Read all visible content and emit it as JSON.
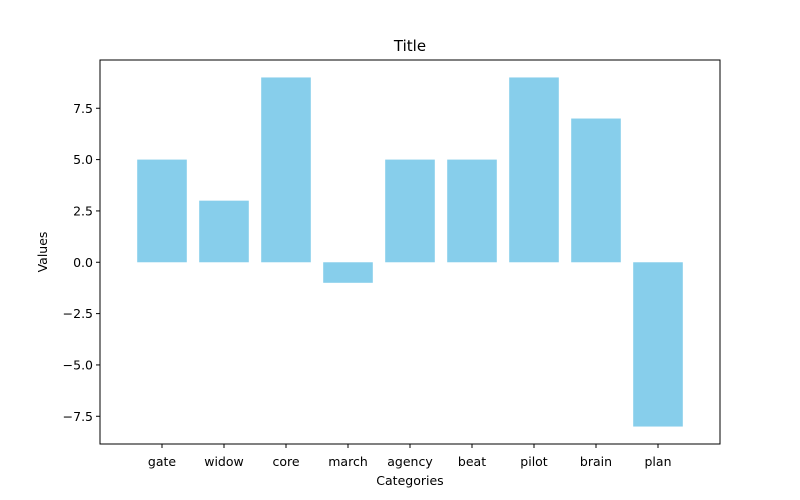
{
  "chart_data": {
    "type": "bar",
    "title": "Title",
    "xlabel": "Categories",
    "ylabel": "Values",
    "categories": [
      "gate",
      "widow",
      "core",
      "march",
      "agency",
      "beat",
      "pilot",
      "brain",
      "plan"
    ],
    "values": [
      5,
      3,
      9,
      -1,
      5,
      5,
      9,
      7,
      -8
    ],
    "ylim": [
      -8.85,
      9.85
    ],
    "yticks": [
      -7.5,
      -5.0,
      -2.5,
      0.0,
      2.5,
      5.0,
      7.5
    ],
    "ytick_labels": [
      "−7.5",
      "−5.0",
      "−2.5",
      "0.0",
      "2.5",
      "5.0",
      "7.5"
    ],
    "bar_color": "#87CEEB",
    "grid": false,
    "legend": "none"
  }
}
